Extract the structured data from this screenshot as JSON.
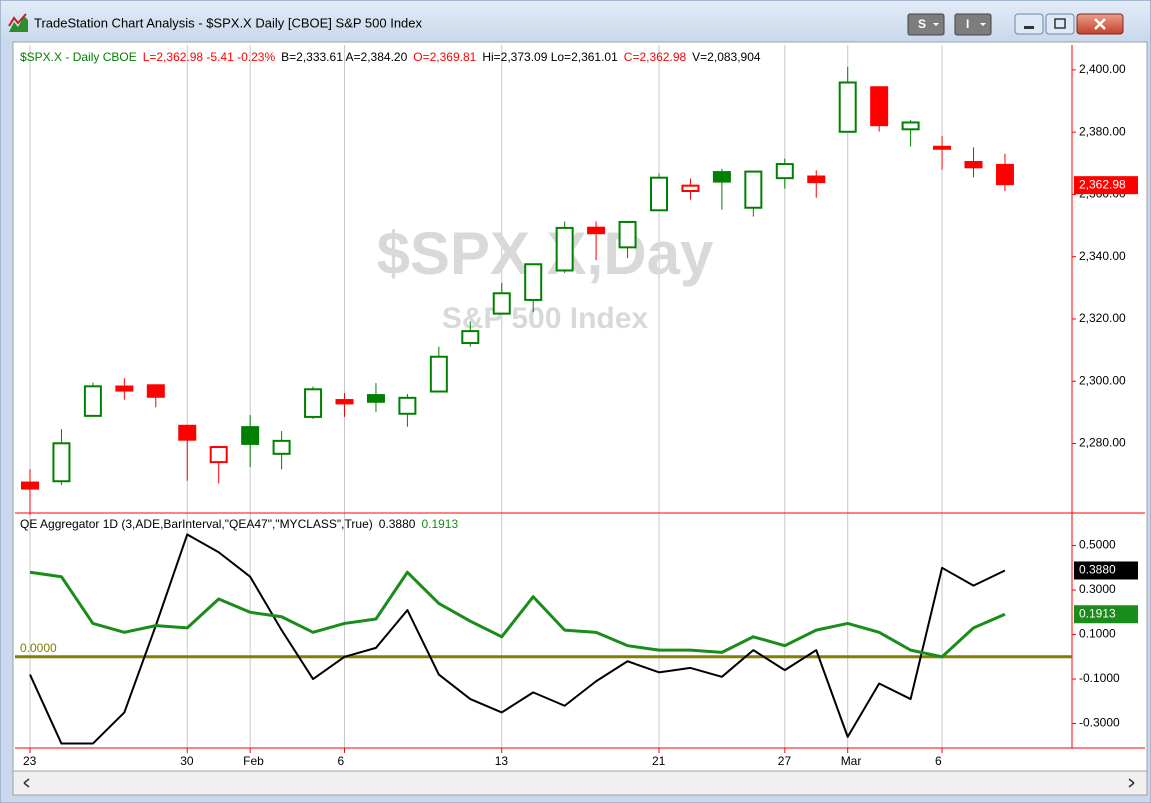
{
  "window": {
    "title": "TradeStation Chart Analysis - $SPX.X Daily [CBOE] S&P 500 Index",
    "buttons": [
      "S",
      "I"
    ]
  },
  "chart_data": [
    {
      "type": "candlestick",
      "header": [
        {
          "text": "$SPX.X - Daily  CBOE",
          "color": "#008000"
        },
        {
          "text": "L=2,362.98  -5.41  -0.23%",
          "color": "#ff0000"
        },
        {
          "text": "B=2,333.61  A=2,384.20",
          "color": "#000000"
        },
        {
          "text": "O=2,369.81",
          "color": "#ff0000"
        },
        {
          "text": "Hi=2,373.09  Lo=2,361.01",
          "color": "#000000"
        },
        {
          "text": "C=2,362.98",
          "color": "#ff0000"
        },
        {
          "text": "V=2,083,904",
          "color": "#000000"
        }
      ],
      "watermark": [
        "$SPX.X,Day",
        "S&P 500 Index"
      ],
      "categories": [
        "23",
        null,
        null,
        null,
        null,
        "30",
        null,
        "Feb",
        null,
        null,
        "6",
        null,
        null,
        null,
        null,
        "13",
        null,
        null,
        null,
        null,
        "21",
        null,
        null,
        null,
        "27",
        null,
        "Mar",
        null,
        null,
        "6",
        null,
        null
      ],
      "open": [
        2267.78,
        2267.88,
        2288.88,
        2298.63,
        2299.02,
        2286.01,
        2274.02,
        2285.59,
        2276.69,
        2288.54,
        2294.28,
        2295.87,
        2289.55,
        2296.7,
        2312.27,
        2321.72,
        2326.12,
        2335.58,
        2349.64,
        2343.01,
        2354.91,
        2361.11,
        2367.5,
        2355.73,
        2365.23,
        2366.08,
        2380.13,
        2394.75,
        2380.92,
        2375.23,
        2370.74,
        2369.81
      ],
      "high": [
        2271.78,
        2284.63,
        2299.55,
        2300.99,
        2299.02,
        2286.01,
        2279.09,
        2289.14,
        2283.97,
        2298.31,
        2296.18,
        2299.4,
        2295.91,
        2311.08,
        2319.23,
        2331.58,
        2337.58,
        2351.3,
        2351.31,
        2351.16,
        2366.71,
        2365.13,
        2368.26,
        2367.34,
        2371.54,
        2367.79,
        2400.98,
        2394.75,
        2383.89,
        2378.8,
        2375.12,
        2373.09
      ],
      "low": [
        2257.02,
        2266.68,
        2288.88,
        2294.08,
        2291.62,
        2268.04,
        2267.21,
        2272.44,
        2271.65,
        2287.88,
        2288.57,
        2290.16,
        2285.38,
        2296.61,
        2311.1,
        2321.42,
        2322.17,
        2334.81,
        2338.87,
        2339.58,
        2354.91,
        2358.34,
        2355.09,
        2352.87,
        2361.87,
        2358.96,
        2380.13,
        2380.17,
        2375.39,
        2367.98,
        2365.51,
        2361.01
      ],
      "close": [
        2265.2,
        2280.07,
        2298.37,
        2296.68,
        2294.69,
        2280.9,
        2278.87,
        2279.55,
        2280.85,
        2297.42,
        2292.56,
        2293.08,
        2294.67,
        2307.87,
        2316.1,
        2328.25,
        2337.58,
        2349.25,
        2347.22,
        2351.16,
        2365.38,
        2362.82,
        2363.81,
        2367.34,
        2369.75,
        2363.64,
        2395.96,
        2381.92,
        2383.12,
        2375.31,
        2368.39,
        2362.98
      ],
      "last_label": "2,362.98",
      "up_color": "#008000",
      "down_color": "#ff0000",
      "ylim": [
        2258,
        2408
      ],
      "yticks": [
        {
          "value": 2280,
          "label": "2,280.00"
        },
        {
          "value": 2300,
          "label": "2,300.00"
        },
        {
          "value": 2320,
          "label": "2,320.00"
        },
        {
          "value": 2340,
          "label": "2,340.00"
        },
        {
          "value": 2360,
          "label": "2,360.00"
        },
        {
          "value": 2380,
          "label": "2,380.00"
        },
        {
          "value": 2400,
          "label": "2,400.00"
        }
      ],
      "xgrid": true
    },
    {
      "type": "line",
      "title": "QE Aggregator 1D (3,ADE,BarInterval,\"QEA47\",\"MYCLASS\",True)",
      "series": [
        {
          "color": "#000000",
          "last_label": "0.3880",
          "values": [
            -0.08,
            -0.39,
            -0.39,
            -0.25,
            0.14,
            0.55,
            0.47,
            0.36,
            0.12,
            -0.1,
            0.0,
            0.04,
            0.21,
            -0.08,
            -0.19,
            -0.25,
            -0.16,
            -0.22,
            -0.11,
            -0.02,
            -0.07,
            -0.05,
            -0.09,
            0.03,
            -0.06,
            0.03,
            -0.36,
            -0.12,
            -0.19,
            0.4,
            0.32,
            0.388
          ]
        },
        {
          "color": "#1a8c1a",
          "last_label": "0.1913",
          "values": [
            0.38,
            0.36,
            0.15,
            0.11,
            0.14,
            0.13,
            0.26,
            0.2,
            0.18,
            0.11,
            0.15,
            0.17,
            0.38,
            0.24,
            0.16,
            0.09,
            0.27,
            0.12,
            0.11,
            0.05,
            0.03,
            0.03,
            0.02,
            0.09,
            0.05,
            0.12,
            0.15,
            0.11,
            0.03,
            0.0,
            0.13,
            0.1913
          ]
        }
      ],
      "reference_line": {
        "value": 0,
        "label": "0.0000",
        "color": "#808000"
      },
      "ylim": [
        -0.41,
        0.57
      ],
      "yticks": [
        {
          "value": -0.3,
          "label": "-0.3000"
        },
        {
          "value": -0.1,
          "label": "-0.1000"
        },
        {
          "value": 0.1,
          "label": "0.1000"
        },
        {
          "value": 0.3,
          "label": "0.3000"
        },
        {
          "value": 0.5,
          "label": "0.5000"
        }
      ]
    }
  ]
}
